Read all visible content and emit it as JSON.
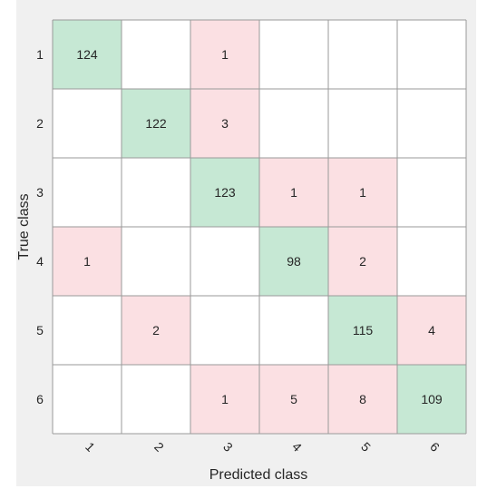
{
  "chart_data": {
    "type": "heatmap",
    "chart_kind": "confusion-matrix",
    "xlabel": "Predicted class",
    "ylabel": "True class",
    "x_categories": [
      "1",
      "2",
      "3",
      "4",
      "5",
      "6"
    ],
    "y_categories": [
      "1",
      "2",
      "3",
      "4",
      "5",
      "6"
    ],
    "matrix": [
      [
        124,
        0,
        1,
        0,
        0,
        0
      ],
      [
        0,
        122,
        3,
        0,
        0,
        0
      ],
      [
        0,
        0,
        123,
        1,
        1,
        0
      ],
      [
        1,
        0,
        0,
        98,
        2,
        0
      ],
      [
        0,
        2,
        0,
        0,
        115,
        4
      ],
      [
        0,
        0,
        1,
        5,
        8,
        109
      ]
    ],
    "zero_cells_labeled": false,
    "colors": {
      "figure_background": "#f0f0f0",
      "empty_cell": "#ffffff",
      "correct_cell": "#c6e8d4",
      "incorrect_cell": "#fbe0e3",
      "grid_line": "#9a9a9a",
      "text": "#262626"
    }
  }
}
